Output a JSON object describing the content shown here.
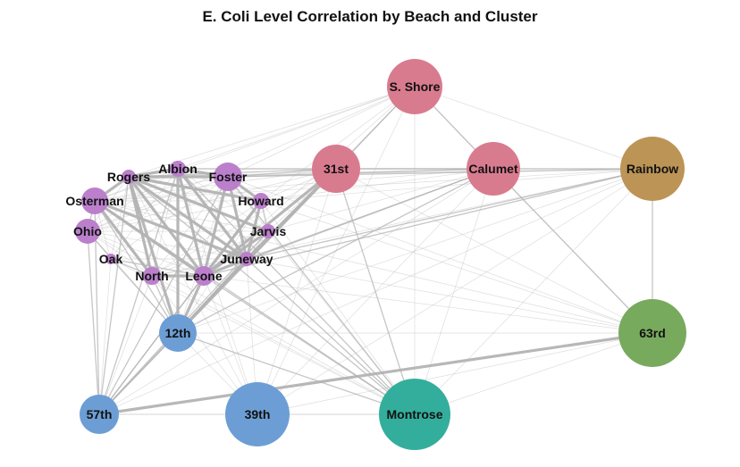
{
  "title": "E. Coli Level Correlation by Beach and Cluster",
  "colors": {
    "cluster_red": "#d97b8f",
    "cluster_gold": "#bc9456",
    "cluster_purple": "#bb7fcc",
    "cluster_blue": "#6c9ed5",
    "cluster_green": "#78aa5e",
    "cluster_teal": "#33ae9c",
    "edge": "#b3b3b3"
  },
  "nodes": [
    {
      "id": "sshore",
      "label": "S. Shore",
      "cluster": "red"
    },
    {
      "id": "31st",
      "label": "31st",
      "cluster": "red"
    },
    {
      "id": "calumet",
      "label": "Calumet",
      "cluster": "red"
    },
    {
      "id": "rainbow",
      "label": "Rainbow",
      "cluster": "gold"
    },
    {
      "id": "albion",
      "label": "Albion",
      "cluster": "purple"
    },
    {
      "id": "rogers",
      "label": "Rogers",
      "cluster": "purple"
    },
    {
      "id": "foster",
      "label": "Foster",
      "cluster": "purple"
    },
    {
      "id": "osterman",
      "label": "Osterman",
      "cluster": "purple"
    },
    {
      "id": "howard",
      "label": "Howard",
      "cluster": "purple"
    },
    {
      "id": "ohio",
      "label": "Ohio",
      "cluster": "purple"
    },
    {
      "id": "jarvis",
      "label": "Jarvis",
      "cluster": "purple"
    },
    {
      "id": "oak",
      "label": "Oak",
      "cluster": "purple"
    },
    {
      "id": "juneway",
      "label": "Juneway",
      "cluster": "purple"
    },
    {
      "id": "north",
      "label": "North",
      "cluster": "purple"
    },
    {
      "id": "leone",
      "label": "Leone",
      "cluster": "purple"
    },
    {
      "id": "12th",
      "label": "12th",
      "cluster": "blue"
    },
    {
      "id": "63rd",
      "label": "63rd",
      "cluster": "green"
    },
    {
      "id": "57th",
      "label": "57th",
      "cluster": "blue"
    },
    {
      "id": "39th",
      "label": "39th",
      "cluster": "blue"
    },
    {
      "id": "montrose",
      "label": "Montrose",
      "cluster": "teal"
    }
  ],
  "edges": [
    [
      "rogers",
      "albion",
      "strong"
    ],
    [
      "rogers",
      "foster",
      "strong"
    ],
    [
      "rogers",
      "osterman",
      "strong"
    ],
    [
      "rogers",
      "howard",
      "strong"
    ],
    [
      "rogers",
      "jarvis",
      "strong"
    ],
    [
      "rogers",
      "juneway",
      "strong"
    ],
    [
      "rogers",
      "leone",
      "strong"
    ],
    [
      "rogers",
      "north",
      "strong"
    ],
    [
      "rogers",
      "12th",
      "strong"
    ],
    [
      "albion",
      "foster",
      "strong"
    ],
    [
      "albion",
      "juneway",
      "strong"
    ],
    [
      "albion",
      "leone",
      "strong"
    ],
    [
      "albion",
      "12th",
      "strong"
    ],
    [
      "foster",
      "howard",
      "strong"
    ],
    [
      "foster",
      "juneway",
      "strong"
    ],
    [
      "foster",
      "leone",
      "strong"
    ],
    [
      "osterman",
      "juneway",
      "strong"
    ],
    [
      "osterman",
      "leone",
      "strong"
    ],
    [
      "osterman",
      "north",
      "strong"
    ],
    [
      "howard",
      "leone",
      "strong"
    ],
    [
      "howard",
      "juneway",
      "strong"
    ],
    [
      "jarvis",
      "leone",
      "strong"
    ],
    [
      "juneway",
      "leone",
      "strong"
    ],
    [
      "north",
      "leone",
      "strong"
    ],
    [
      "leone",
      "12th",
      "strong"
    ],
    [
      "juneway",
      "12th",
      "strong"
    ],
    [
      "63rd",
      "57th",
      "strong"
    ],
    [
      "31st",
      "juneway",
      "strong"
    ],
    [
      "31st",
      "leone",
      "strong"
    ],
    [
      "31st",
      "12th",
      "strong"
    ],
    [
      "31st",
      "calumet",
      "medium"
    ],
    [
      "31st",
      "rogers",
      "medium"
    ],
    [
      "31st",
      "albion",
      "medium"
    ],
    [
      "31st",
      "foster",
      "medium"
    ],
    [
      "31st",
      "sshore",
      "medium"
    ],
    [
      "sshore",
      "calumet",
      "medium"
    ],
    [
      "calumet",
      "63rd",
      "medium"
    ],
    [
      "rainbow",
      "63rd",
      "medium"
    ],
    [
      "12th",
      "57th",
      "medium"
    ],
    [
      "leone",
      "57th",
      "medium"
    ],
    [
      "juneway",
      "57th",
      "medium"
    ],
    [
      "rogers",
      "montrose",
      "medium"
    ],
    [
      "albion",
      "montrose",
      "medium"
    ],
    [
      "foster",
      "montrose",
      "medium"
    ],
    [
      "osterman",
      "montrose",
      "medium"
    ],
    [
      "12th",
      "montrose",
      "medium"
    ],
    [
      "31st",
      "montrose",
      "medium"
    ],
    [
      "juneway",
      "montrose",
      "medium"
    ],
    [
      "leone",
      "montrose",
      "medium"
    ],
    [
      "calumet",
      "juneway",
      "medium"
    ],
    [
      "calumet",
      "leone",
      "medium"
    ],
    [
      "rainbow",
      "juneway",
      "medium"
    ],
    [
      "rainbow",
      "leone",
      "medium"
    ],
    [
      "rainbow",
      "31st",
      "medium"
    ],
    [
      "calumet",
      "foster",
      "medium"
    ],
    [
      "rainbow",
      "foster",
      "medium"
    ],
    [
      "calumet",
      "12th",
      "medium"
    ],
    [
      "osterman",
      "12th",
      "medium"
    ],
    [
      "ohio",
      "12th",
      "medium"
    ],
    [
      "ohio",
      "57th",
      "medium"
    ],
    [
      "osterman",
      "57th",
      "medium"
    ],
    [
      "rogers",
      "57th",
      "medium"
    ],
    [
      "albion",
      "57th",
      "medium"
    ],
    [
      "foster",
      "57th",
      "medium"
    ],
    [
      "howard",
      "57th",
      "medium"
    ],
    [
      "jarvis",
      "57th",
      "medium"
    ],
    [
      "osterman",
      "ohio",
      "medium"
    ],
    [
      "howard",
      "jarvis",
      "medium"
    ],
    [
      "north",
      "12th",
      "medium"
    ],
    [
      "oak",
      "leone",
      "medium"
    ],
    [
      "oak",
      "north",
      "medium"
    ],
    [
      "sshore",
      "rogers",
      "light"
    ],
    [
      "sshore",
      "albion",
      "light"
    ],
    [
      "sshore",
      "foster",
      "light"
    ],
    [
      "sshore",
      "osterman",
      "light"
    ],
    [
      "sshore",
      "howard",
      "light"
    ],
    [
      "sshore",
      "juneway",
      "light"
    ],
    [
      "sshore",
      "leone",
      "light"
    ],
    [
      "sshore",
      "12th",
      "light"
    ],
    [
      "sshore",
      "montrose",
      "light"
    ],
    [
      "sshore",
      "rainbow",
      "light"
    ],
    [
      "sshore",
      "57th",
      "light"
    ],
    [
      "sshore",
      "63rd",
      "light"
    ],
    [
      "sshore",
      "39th",
      "light"
    ],
    [
      "sshore",
      "ohio",
      "light"
    ],
    [
      "calumet",
      "rainbow",
      "light"
    ],
    [
      "calumet",
      "rogers",
      "light"
    ],
    [
      "calumet",
      "albion",
      "light"
    ],
    [
      "calumet",
      "osterman",
      "light"
    ],
    [
      "calumet",
      "howard",
      "light"
    ],
    [
      "calumet",
      "jarvis",
      "light"
    ],
    [
      "calumet",
      "montrose",
      "light"
    ],
    [
      "calumet",
      "57th",
      "light"
    ],
    [
      "calumet",
      "39th",
      "light"
    ],
    [
      "rainbow",
      "rogers",
      "light"
    ],
    [
      "rainbow",
      "albion",
      "light"
    ],
    [
      "rainbow",
      "osterman",
      "light"
    ],
    [
      "rainbow",
      "howard",
      "light"
    ],
    [
      "rainbow",
      "12th",
      "light"
    ],
    [
      "rainbow",
      "montrose",
      "light"
    ],
    [
      "rainbow",
      "57th",
      "light"
    ],
    [
      "rainbow",
      "39th",
      "light"
    ],
    [
      "rainbow",
      "north",
      "light"
    ],
    [
      "63rd",
      "12th",
      "light"
    ],
    [
      "63rd",
      "montrose",
      "light"
    ],
    [
      "63rd",
      "39th",
      "light"
    ],
    [
      "63rd",
      "leone",
      "light"
    ],
    [
      "63rd",
      "juneway",
      "light"
    ],
    [
      "63rd",
      "31st",
      "light"
    ],
    [
      "63rd",
      "osterman",
      "light"
    ],
    [
      "63rd",
      "howard",
      "light"
    ],
    [
      "63rd",
      "foster",
      "light"
    ],
    [
      "39th",
      "12th",
      "light"
    ],
    [
      "39th",
      "57th",
      "light"
    ],
    [
      "39th",
      "montrose",
      "light"
    ],
    [
      "39th",
      "leone",
      "light"
    ],
    [
      "39th",
      "osterman",
      "light"
    ],
    [
      "39th",
      "31st",
      "light"
    ],
    [
      "39th",
      "rogers",
      "light"
    ],
    [
      "39th",
      "albion",
      "light"
    ],
    [
      "39th",
      "juneway",
      "light"
    ],
    [
      "montrose",
      "57th",
      "light"
    ],
    [
      "montrose",
      "ohio",
      "light"
    ],
    [
      "montrose",
      "oak",
      "light"
    ],
    [
      "montrose",
      "north",
      "light"
    ],
    [
      "montrose",
      "howard",
      "light"
    ],
    [
      "montrose",
      "jarvis",
      "light"
    ],
    [
      "57th",
      "oak",
      "light"
    ],
    [
      "57th",
      "north",
      "light"
    ],
    [
      "osterman",
      "oak",
      "light"
    ],
    [
      "ohio",
      "oak",
      "light"
    ],
    [
      "ohio",
      "north",
      "light"
    ],
    [
      "ohio",
      "leone",
      "light"
    ],
    [
      "ohio",
      "juneway",
      "light"
    ],
    [
      "ohio",
      "rogers",
      "light"
    ],
    [
      "ohio",
      "albion",
      "light"
    ],
    [
      "ohio",
      "foster",
      "light"
    ],
    [
      "ohio",
      "howard",
      "light"
    ],
    [
      "ohio",
      "jarvis",
      "light"
    ],
    [
      "oak",
      "12th",
      "light"
    ],
    [
      "oak",
      "rogers",
      "light"
    ],
    [
      "oak",
      "albion",
      "light"
    ],
    [
      "oak",
      "juneway",
      "light"
    ],
    [
      "oak",
      "foster",
      "light"
    ],
    [
      "north",
      "albion",
      "light"
    ],
    [
      "north",
      "foster",
      "light"
    ],
    [
      "north",
      "howard",
      "light"
    ],
    [
      "north",
      "jarvis",
      "light"
    ],
    [
      "north",
      "juneway",
      "light"
    ],
    [
      "osterman",
      "albion",
      "light"
    ],
    [
      "osterman",
      "foster",
      "light"
    ],
    [
      "osterman",
      "howard",
      "light"
    ],
    [
      "osterman",
      "jarvis",
      "light"
    ],
    [
      "albion",
      "howard",
      "light"
    ],
    [
      "albion",
      "jarvis",
      "light"
    ],
    [
      "foster",
      "jarvis",
      "light"
    ],
    [
      "jarvis",
      "juneway",
      "light"
    ],
    [
      "jarvis",
      "12th",
      "light"
    ],
    [
      "howard",
      "12th",
      "light"
    ],
    [
      "foster",
      "12th",
      "light"
    ],
    [
      "31st",
      "howard",
      "light"
    ],
    [
      "31st",
      "jarvis",
      "light"
    ],
    [
      "31st",
      "osterman",
      "light"
    ],
    [
      "31st",
      "ohio",
      "light"
    ],
    [
      "31st",
      "north",
      "light"
    ],
    [
      "31st",
      "57th",
      "light"
    ]
  ]
}
